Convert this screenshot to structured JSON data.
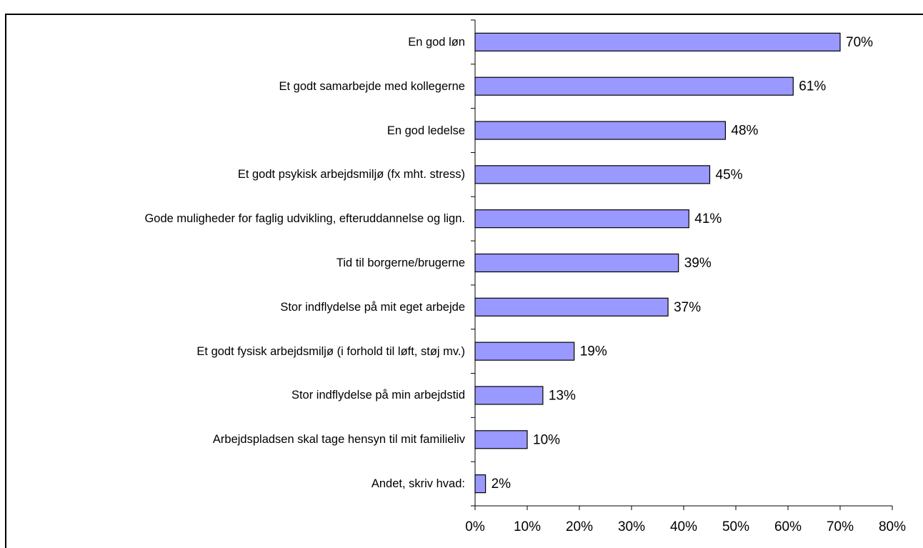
{
  "chart_data": {
    "type": "bar",
    "orientation": "horizontal",
    "categories": [
      "En god løn",
      "Et godt samarbejde med kollegerne",
      "En god ledelse",
      "Et godt psykisk arbejdsmiljø (fx mht. stress)",
      "Gode muligheder for faglig udvikling, efteruddannelse og lign.",
      "Tid til borgerne/brugerne",
      "Stor indflydelse på mit eget arbejde",
      "Et godt fysisk arbejdsmiljø (i forhold til løft, støj mv.)",
      "Stor indflydelse på min arbejdstid",
      "Arbejdspladsen skal tage hensyn til mit familieliv",
      "Andet, skriv hvad:"
    ],
    "values": [
      70,
      61,
      48,
      45,
      41,
      39,
      37,
      19,
      13,
      10,
      2
    ],
    "value_labels": [
      "70%",
      "61%",
      "48%",
      "45%",
      "41%",
      "39%",
      "37%",
      "19%",
      "13%",
      "10%",
      "2%"
    ],
    "color": "#9999ff",
    "xlim": [
      0,
      80
    ],
    "xticks": [
      {
        "value": 0,
        "label": "0%"
      },
      {
        "value": 10,
        "label": "10%"
      },
      {
        "value": 20,
        "label": "20%"
      },
      {
        "value": 30,
        "label": "30%"
      },
      {
        "value": 40,
        "label": "40%"
      },
      {
        "value": 50,
        "label": "50%"
      },
      {
        "value": 60,
        "label": "60%"
      },
      {
        "value": 70,
        "label": "70%"
      },
      {
        "value": 80,
        "label": "80%"
      }
    ],
    "grid": false
  }
}
